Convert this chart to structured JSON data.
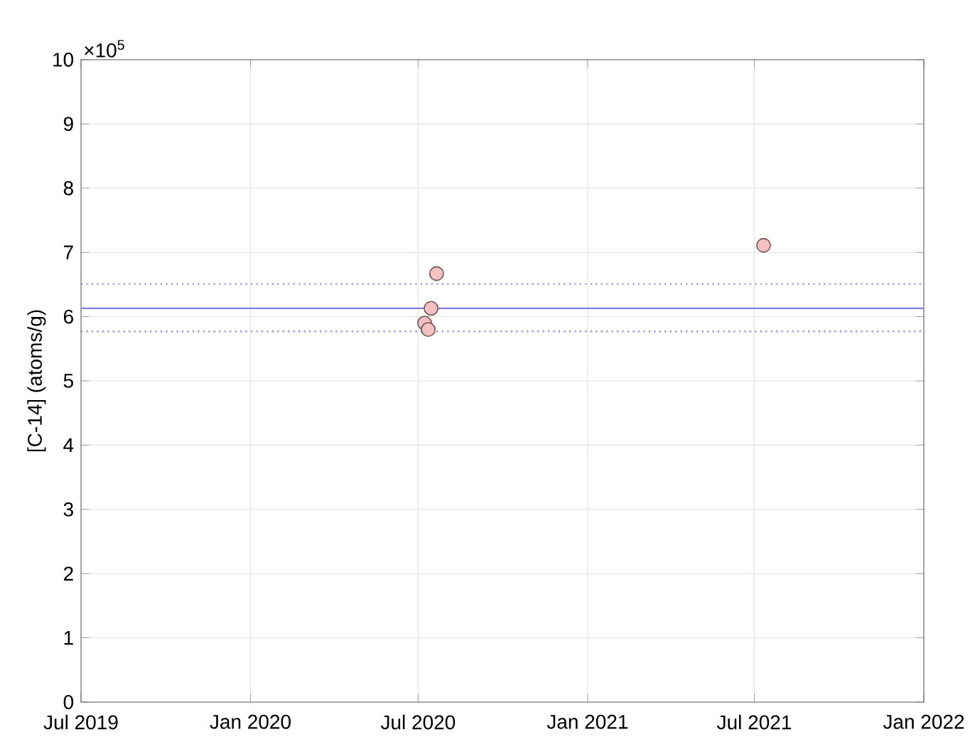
{
  "chart_data": {
    "type": "scatter",
    "ylabel": "[C-14] (atoms/g)",
    "annotations": [
      "×10$^{5}$"
    ],
    "x": [
      "2020-07-08",
      "2020-07-12",
      "2020-07-15",
      "2020-07-21",
      "2021-07-11"
    ],
    "series": [
      {
        "color": "#f5c0c0",
        "values": [
          5.9,
          5.8,
          6.13,
          6.67,
          7.11
        ]
      }
    ],
    "marker": "circle",
    "grid": true,
    "xlim": [
      "2019-07-01",
      "2022-01-01"
    ],
    "xticks": [
      {
        "value": "2019-07-01",
        "label": "Jul 2019"
      },
      {
        "value": "2020-01-01",
        "label": "Jan 2020"
      },
      {
        "value": "2020-07-01",
        "label": "Jul 2020"
      },
      {
        "value": "2021-01-01",
        "label": "Jan 2021"
      },
      {
        "value": "2021-07-01",
        "label": "Jul 2021"
      },
      {
        "value": "2022-01-01",
        "label": "Jan 2022"
      }
    ],
    "ylim": [
      0,
      10
    ],
    "yticks": [
      0,
      1,
      2,
      3,
      4,
      5,
      6,
      7,
      8,
      9,
      10
    ],
    "ref_lines": [
      {
        "axis": "y",
        "value": 6.13,
        "color": "#8080e8",
        "line_style": "solid"
      },
      {
        "axis": "y",
        "value": 6.51,
        "color": "#8080e8",
        "line_style": "dotted"
      },
      {
        "axis": "y",
        "value": 5.77,
        "color": "#8080e8",
        "line_style": "dotted"
      }
    ]
  }
}
